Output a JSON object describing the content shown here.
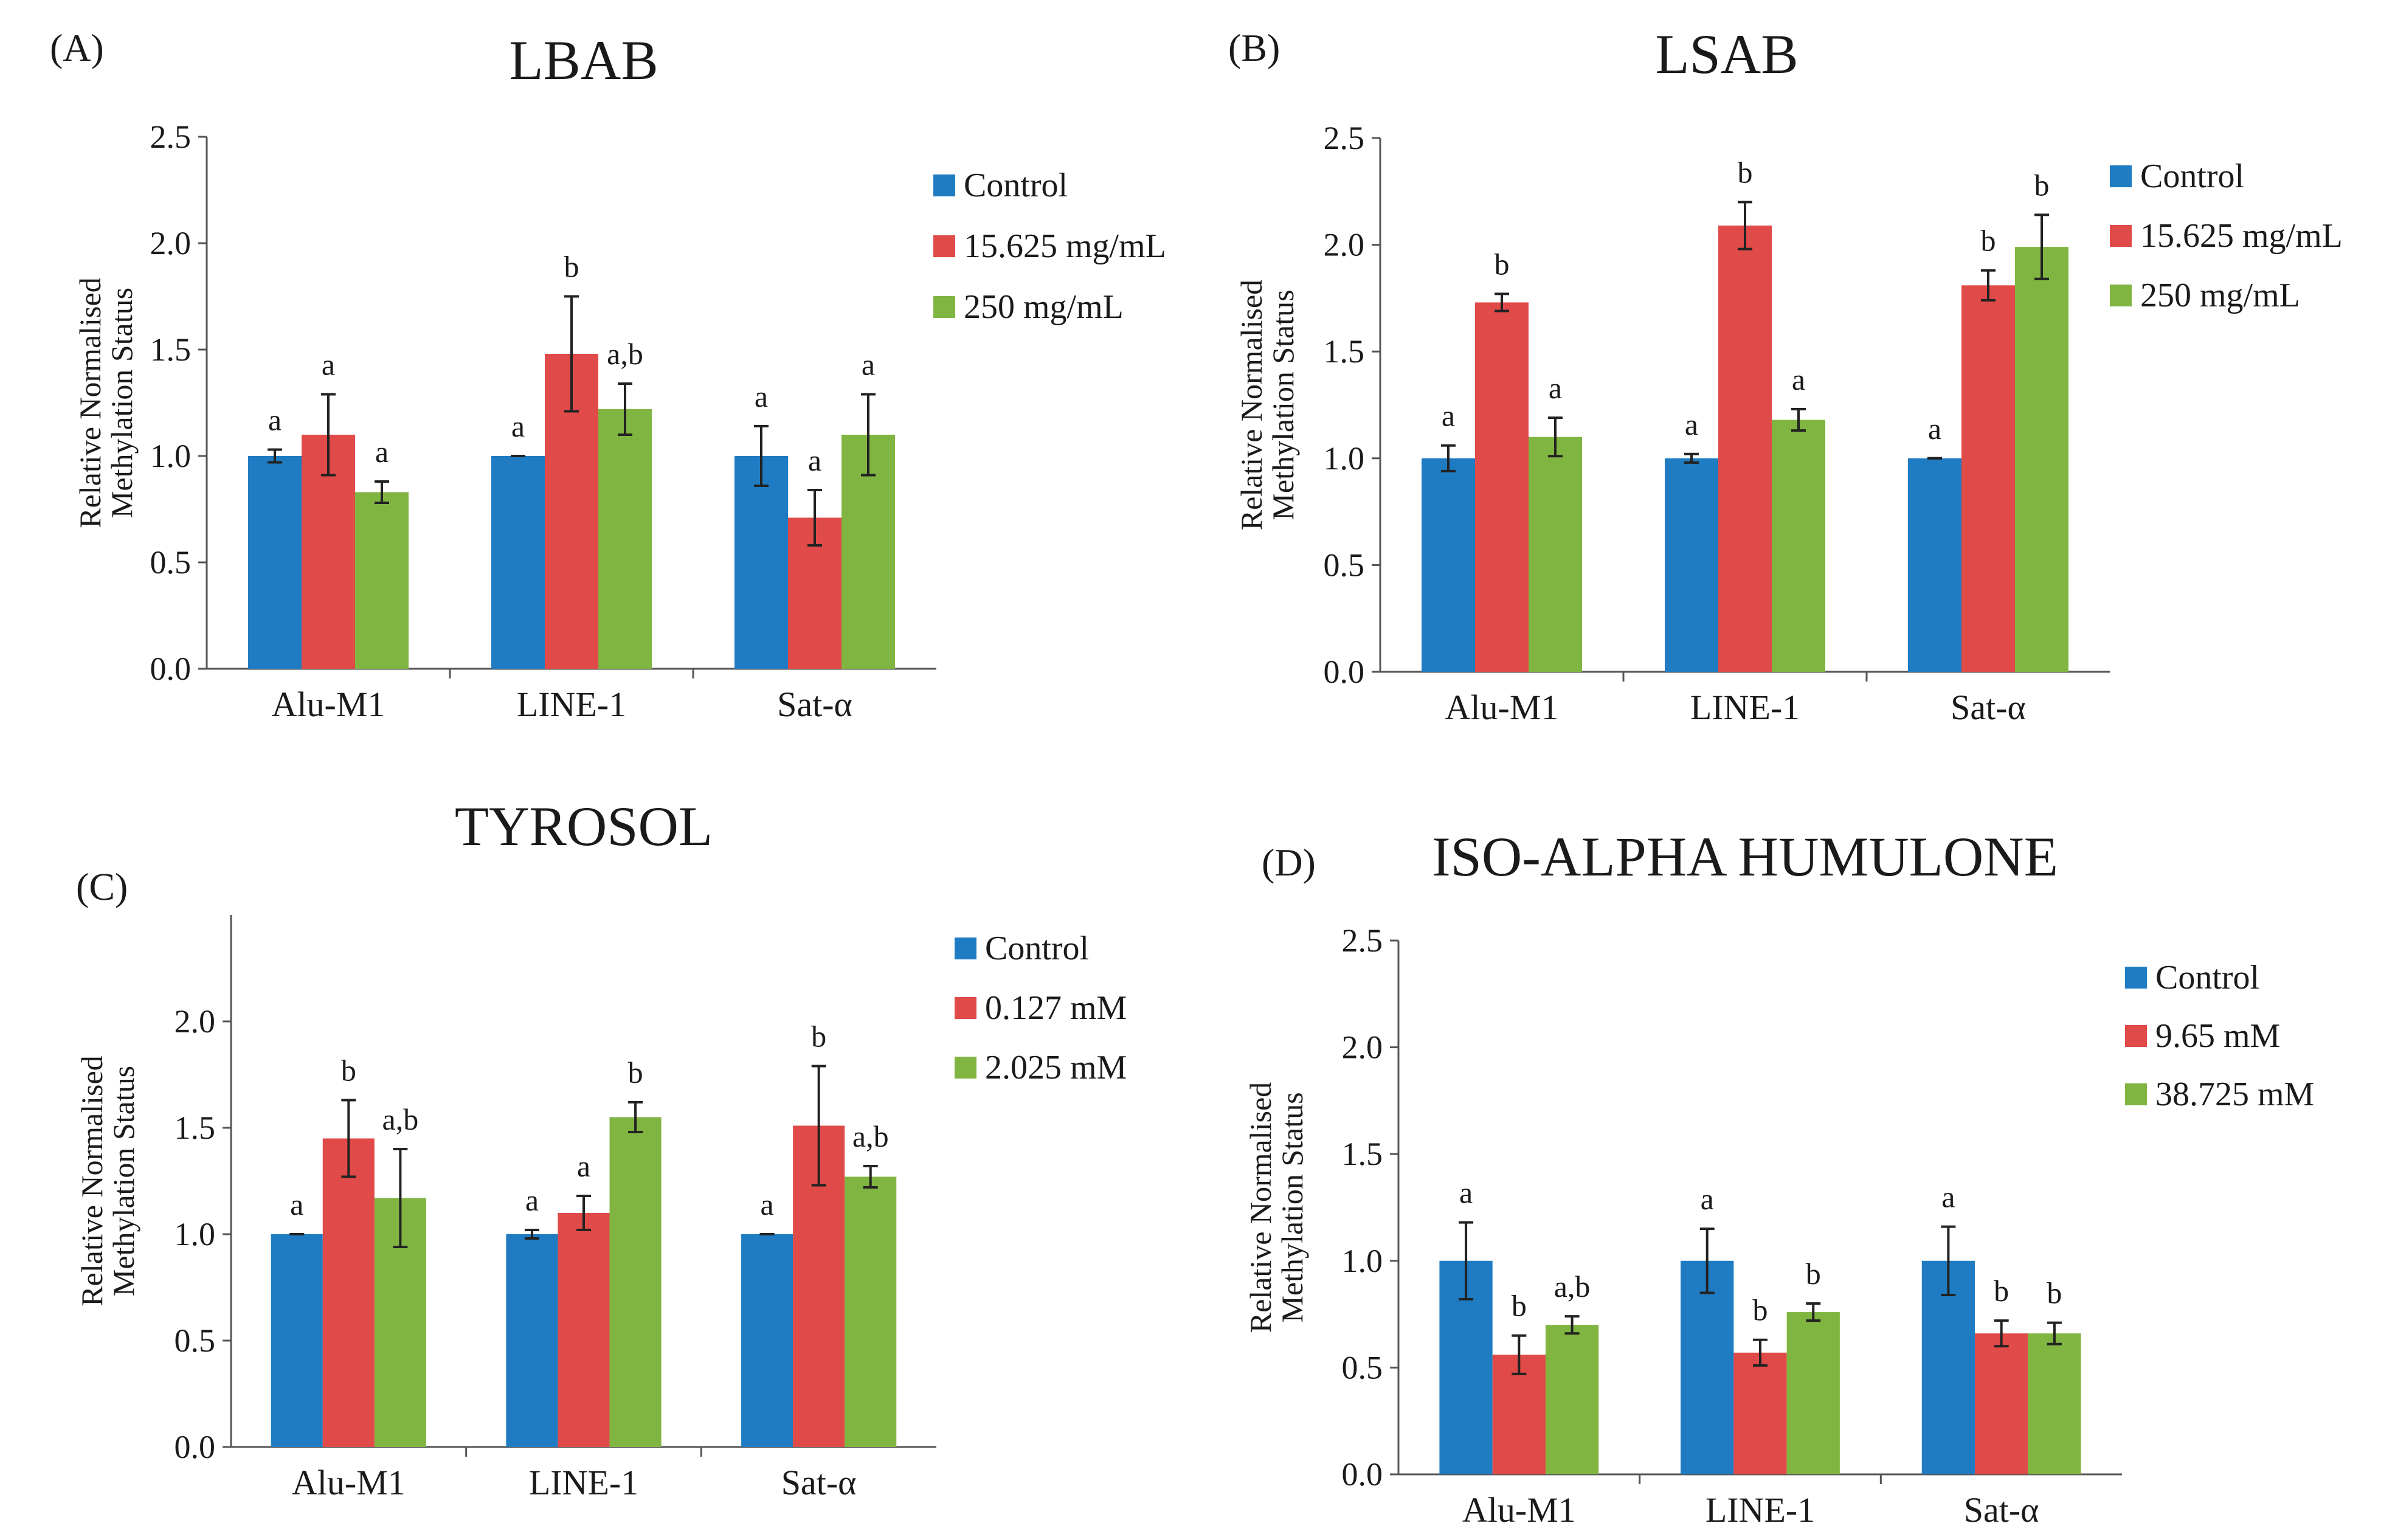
{
  "colors": {
    "control": "#1f7cc2",
    "low": "#e04a48",
    "high": "#80b541"
  },
  "categories_display": [
    "Alu-M1",
    "LINE-1",
    "Sat-α"
  ],
  "chart_data": [
    {
      "panel": "(A)",
      "title": "LBAB",
      "type": "bar",
      "ylabel": [
        "Relative Normalised",
        "Methylation Status"
      ],
      "categories": [
        "Alu-M1",
        "LINE-1",
        "Sat-α"
      ],
      "ylim": [
        0,
        2.5
      ],
      "yticks": [
        "0.0",
        "0.5",
        "1.0",
        "1.5",
        "2.0",
        "2.5"
      ],
      "series": [
        {
          "name": "Control",
          "values": [
            1.0,
            1.0,
            1.0
          ],
          "err": [
            0.03,
            0.0,
            0.14
          ],
          "sig": [
            "a",
            "a",
            "a"
          ]
        },
        {
          "name": "15.625 mg/mL",
          "values": [
            1.1,
            1.48,
            0.71
          ],
          "err": [
            0.19,
            0.27,
            0.13
          ],
          "sig": [
            "a",
            "b",
            "a"
          ]
        },
        {
          "name": "250 mg/mL",
          "values": [
            0.83,
            1.22,
            1.1
          ],
          "err": [
            0.05,
            0.12,
            0.19
          ],
          "sig": [
            "a",
            "a,b",
            "a"
          ]
        }
      ]
    },
    {
      "panel": "(B)",
      "title": "LSAB",
      "type": "bar",
      "ylabel": [
        "Relative Normalised",
        "Methylation Status"
      ],
      "categories": [
        "Alu-M1",
        "LINE-1",
        "Sat-α"
      ],
      "ylim": [
        0,
        2.5
      ],
      "yticks": [
        "0.0",
        "0.5",
        "1.0",
        "1.5",
        "2.0",
        "2.5"
      ],
      "series": [
        {
          "name": "Control",
          "values": [
            1.0,
            1.0,
            1.0
          ],
          "err": [
            0.06,
            0.02,
            0.0
          ],
          "sig": [
            "a",
            "a",
            "a"
          ]
        },
        {
          "name": "15.625 mg/mL",
          "values": [
            1.73,
            2.09,
            1.81
          ],
          "err": [
            0.04,
            0.11,
            0.07
          ],
          "sig": [
            "b",
            "b",
            "b"
          ]
        },
        {
          "name": "250 mg/mL",
          "values": [
            1.1,
            1.18,
            1.99
          ],
          "err": [
            0.09,
            0.05,
            0.15
          ],
          "sig": [
            "a",
            "a",
            "b"
          ]
        }
      ]
    },
    {
      "panel": "(C)",
      "title": "TYROSOL",
      "type": "bar",
      "ylabel": [
        "Relative Normalised",
        "Methylation Status"
      ],
      "categories": [
        "Alu-M1",
        "LINE-1",
        "Sat-α"
      ],
      "ylim": [
        0,
        2.5
      ],
      "yticks": [
        "0.0",
        "0.5",
        "1.0",
        "1.5",
        "2.0"
      ],
      "series": [
        {
          "name": "Control",
          "values": [
            1.0,
            1.0,
            1.0
          ],
          "err": [
            0.0,
            0.02,
            0.0
          ],
          "sig": [
            "a",
            "a",
            "a"
          ]
        },
        {
          "name": "0.127 mM",
          "values": [
            1.45,
            1.1,
            1.51
          ],
          "err": [
            0.18,
            0.08,
            0.28
          ],
          "sig": [
            "b",
            "a",
            "b"
          ]
        },
        {
          "name": "2.025 mM",
          "values": [
            1.17,
            1.55,
            1.27
          ],
          "err": [
            0.23,
            0.07,
            0.05
          ],
          "sig": [
            "a,b",
            "b",
            "a,b"
          ]
        }
      ]
    },
    {
      "panel": "(D)",
      "title": "ISO-ALPHA HUMULONE",
      "type": "bar",
      "ylabel": [
        "Relative Normalised",
        "Methylation Status"
      ],
      "categories": [
        "Alu-M1",
        "LINE-1",
        "Sat-α"
      ],
      "ylim": [
        0,
        2.5
      ],
      "yticks": [
        "0.0",
        "0.5",
        "1.0",
        "1.5",
        "2.0",
        "2.5"
      ],
      "series": [
        {
          "name": "Control",
          "values": [
            1.0,
            1.0,
            1.0
          ],
          "err": [
            0.18,
            0.15,
            0.16
          ],
          "sig": [
            "a",
            "a",
            "a"
          ]
        },
        {
          "name": "9.65 mM",
          "values": [
            0.56,
            0.57,
            0.66
          ],
          "err": [
            0.09,
            0.06,
            0.06
          ],
          "sig": [
            "b",
            "b",
            "b"
          ]
        },
        {
          "name": "38.725 mM",
          "values": [
            0.7,
            0.76,
            0.66
          ],
          "err": [
            0.04,
            0.04,
            0.05
          ],
          "sig": [
            "a,b",
            "b",
            "b"
          ]
        }
      ]
    }
  ]
}
